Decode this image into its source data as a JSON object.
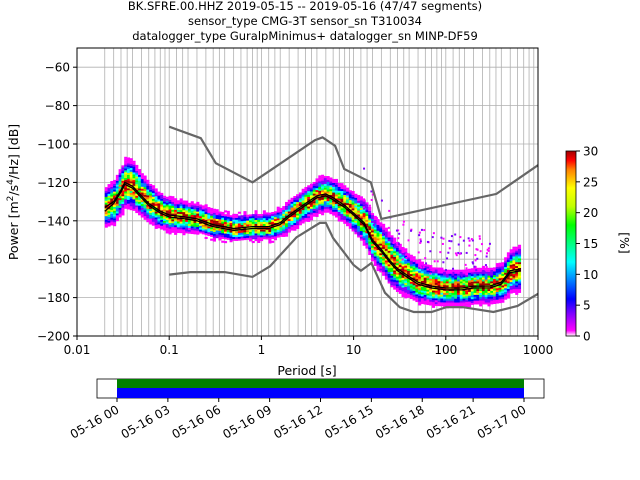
{
  "chart_data": {
    "type": "heatmap",
    "title_lines": [
      "BK.SFRE.00.HHZ   2019-05-15 -- 2019-05-16  (47/47 segments)",
      "sensor_type CMG-3T sensor_sn T310034",
      "datalogger_type GuralpMinimus+ datalogger_sn MINP-DF59"
    ],
    "xlabel": "Period [s]",
    "ylabel": "Power [m²/s⁴/Hz] [dB]",
    "xscale": "log",
    "xlim": [
      0.01,
      1000
    ],
    "ylim": [
      -200,
      -50
    ],
    "x_ticks": [
      0.01,
      0.1,
      1,
      10,
      100,
      1000
    ],
    "x_tick_labels": [
      "0.01",
      "0.1",
      "1",
      "10",
      "100",
      "1000"
    ],
    "y_ticks": [
      -200,
      -180,
      -160,
      -140,
      -120,
      -100,
      -80,
      -60
    ],
    "y_tick_labels": [
      "−200",
      "−180",
      "−160",
      "−140",
      "−120",
      "−100",
      "−80",
      "−60"
    ],
    "colorbar": {
      "label": "[%]",
      "range": [
        0,
        30
      ],
      "ticks": [
        0,
        5,
        10,
        15,
        20,
        25,
        30
      ],
      "tick_labels": [
        "0",
        "5",
        "10",
        "15",
        "20",
        "25",
        "30"
      ],
      "colors": [
        "#ffffff",
        "#ff00ff",
        "#8000ff",
        "#0000ff",
        "#0080ff",
        "#00ffff",
        "#00ff80",
        "#00ff00",
        "#c0ff00",
        "#ffff00",
        "#ff8000",
        "#ff0000",
        "#a00000"
      ]
    },
    "nhnm": [
      [
        0.1,
        -91
      ],
      [
        0.22,
        -97
      ],
      [
        0.32,
        -110
      ],
      [
        0.8,
        -120
      ],
      [
        3.8,
        -98
      ],
      [
        4.6,
        -96.5
      ],
      [
        6.3,
        -101
      ],
      [
        7.9,
        -113
      ],
      [
        15.4,
        -120
      ],
      [
        20,
        -139
      ],
      [
        354,
        -126
      ],
      [
        1000,
        -111
      ]
    ],
    "nlnm": [
      [
        0.1,
        -168
      ],
      [
        0.17,
        -166.7
      ],
      [
        0.4,
        -166.7
      ],
      [
        0.8,
        -169.2
      ],
      [
        1.24,
        -163.7
      ],
      [
        2.4,
        -148.6
      ],
      [
        4.3,
        -141.1
      ],
      [
        5,
        -141.1
      ],
      [
        6,
        -149
      ],
      [
        10,
        -163
      ],
      [
        12,
        -166
      ],
      [
        15.6,
        -162
      ],
      [
        21.9,
        -177.5
      ],
      [
        31.6,
        -185
      ],
      [
        45,
        -187.5
      ],
      [
        70,
        -187.5
      ],
      [
        101,
        -185
      ],
      [
        154,
        -185
      ],
      [
        328,
        -187.5
      ],
      [
        600,
        -184.4
      ],
      [
        1000,
        -178
      ]
    ],
    "mode": [
      [
        0.02,
        -133
      ],
      [
        0.025,
        -130
      ],
      [
        0.03,
        -124
      ],
      [
        0.033,
        -120
      ],
      [
        0.04,
        -122
      ],
      [
        0.05,
        -127
      ],
      [
        0.06,
        -131
      ],
      [
        0.08,
        -135
      ],
      [
        0.1,
        -137
      ],
      [
        0.15,
        -138
      ],
      [
        0.2,
        -139
      ],
      [
        0.3,
        -142
      ],
      [
        0.5,
        -144
      ],
      [
        0.8,
        -143
      ],
      [
        1.2,
        -143
      ],
      [
        1.6,
        -141
      ],
      [
        2,
        -137
      ],
      [
        3,
        -131
      ],
      [
        4,
        -127
      ],
      [
        5,
        -126
      ],
      [
        6,
        -128
      ],
      [
        8,
        -132
      ],
      [
        10,
        -136
      ],
      [
        13,
        -141
      ],
      [
        16,
        -150
      ],
      [
        20,
        -155
      ],
      [
        25,
        -161
      ],
      [
        30,
        -165
      ],
      [
        40,
        -169
      ],
      [
        50,
        -172
      ],
      [
        70,
        -174
      ],
      [
        100,
        -175
      ],
      [
        150,
        -175
      ],
      [
        200,
        -174
      ],
      [
        300,
        -174
      ],
      [
        400,
        -172
      ],
      [
        500,
        -166
      ],
      [
        650,
        -165
      ]
    ],
    "mean": [
      [
        0.02,
        -135
      ],
      [
        0.025,
        -131
      ],
      [
        0.03,
        -125
      ],
      [
        0.033,
        -121
      ],
      [
        0.04,
        -123
      ],
      [
        0.05,
        -128
      ],
      [
        0.06,
        -132
      ],
      [
        0.08,
        -136
      ],
      [
        0.1,
        -138
      ],
      [
        0.15,
        -139
      ],
      [
        0.2,
        -140
      ],
      [
        0.3,
        -143
      ],
      [
        0.5,
        -145
      ],
      [
        0.8,
        -144
      ],
      [
        1.2,
        -144
      ],
      [
        1.6,
        -142
      ],
      [
        2,
        -138
      ],
      [
        3,
        -132
      ],
      [
        4,
        -128
      ],
      [
        5,
        -127
      ],
      [
        6,
        -129
      ],
      [
        8,
        -133
      ],
      [
        10,
        -137
      ],
      [
        13,
        -142
      ],
      [
        16,
        -151
      ],
      [
        20,
        -156
      ],
      [
        25,
        -162
      ],
      [
        30,
        -166
      ],
      [
        40,
        -170
      ],
      [
        50,
        -173
      ],
      [
        70,
        -175
      ],
      [
        100,
        -176
      ],
      [
        150,
        -176
      ],
      [
        200,
        -175
      ],
      [
        300,
        -175
      ],
      [
        400,
        -173
      ],
      [
        500,
        -167
      ],
      [
        650,
        -166
      ]
    ],
    "spread": [
      [
        0.02,
        7
      ],
      [
        0.03,
        9
      ],
      [
        0.035,
        10
      ],
      [
        0.05,
        8
      ],
      [
        0.08,
        6
      ],
      [
        0.15,
        5
      ],
      [
        0.4,
        4
      ],
      [
        1,
        4
      ],
      [
        2,
        5
      ],
      [
        4,
        6
      ],
      [
        6,
        6
      ],
      [
        10,
        7
      ],
      [
        15,
        9
      ],
      [
        25,
        10
      ],
      [
        40,
        8
      ],
      [
        100,
        6
      ],
      [
        300,
        6
      ],
      [
        500,
        8
      ],
      [
        650,
        9
      ]
    ],
    "x_sample_lines": [
      0.02,
      0.025,
      0.03,
      0.035,
      0.04,
      0.05,
      0.06,
      0.07,
      0.08,
      0.09,
      0.1,
      0.12,
      0.14,
      0.16,
      0.2,
      0.25,
      0.3,
      0.35,
      0.4,
      0.5,
      0.6,
      0.7,
      0.8,
      0.9,
      1,
      1.2,
      1.4,
      1.6,
      2,
      2.5,
      3,
      3.5,
      4,
      5,
      6,
      7,
      8,
      9,
      10,
      12,
      14,
      16,
      20,
      25,
      30,
      35,
      40,
      50,
      60,
      70,
      80,
      90,
      100,
      120,
      140,
      160,
      200,
      250,
      300,
      350,
      400,
      500,
      600,
      700,
      800,
      900,
      1000
    ],
    "timeline": {
      "start_label": "05-16 00",
      "tick_labels": [
        "05-16 00",
        "05-16 03",
        "05-16 06",
        "05-16 09",
        "05-16 12",
        "05-16 15",
        "05-16 18",
        "05-16 21",
        "05-17 00"
      ],
      "bands": [
        {
          "color": "#008000"
        },
        {
          "color": "#0000ff"
        }
      ]
    }
  }
}
